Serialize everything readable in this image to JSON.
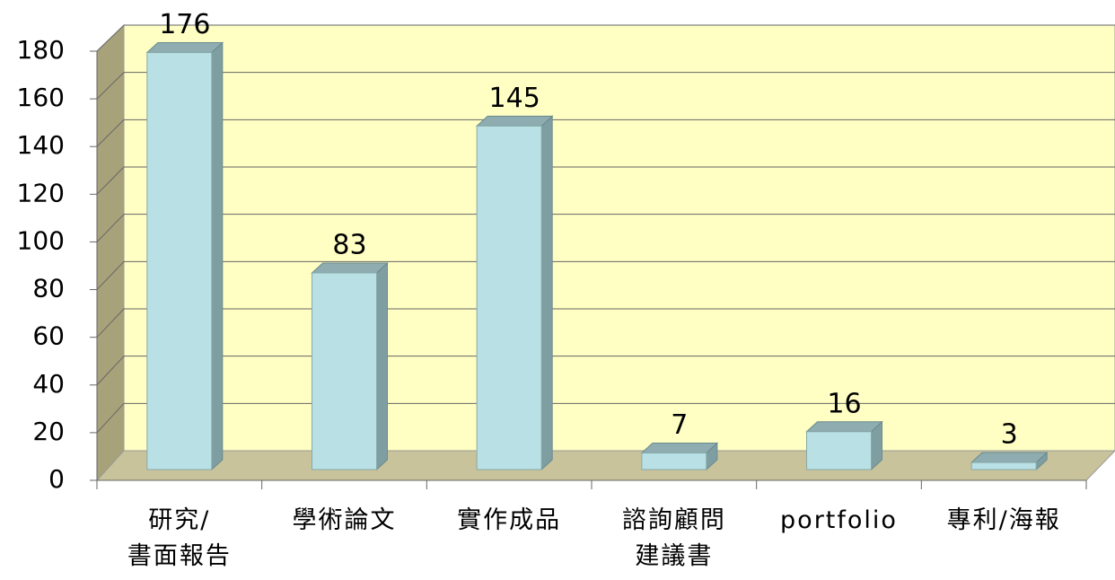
{
  "chart_data": {
    "type": "bar3d",
    "categories": [
      "研究/\n書面報告",
      "學術論文",
      "實作成品",
      "諮詢顧問\n建議書",
      "portfolio",
      "專利/海報"
    ],
    "values": [
      176,
      83,
      145,
      7,
      16,
      3
    ],
    "color": "#b9e0e4",
    "ylim": [
      0,
      180
    ],
    "yticks": [
      0,
      20,
      40,
      60,
      80,
      100,
      120,
      140,
      160,
      180
    ],
    "grid": true
  }
}
